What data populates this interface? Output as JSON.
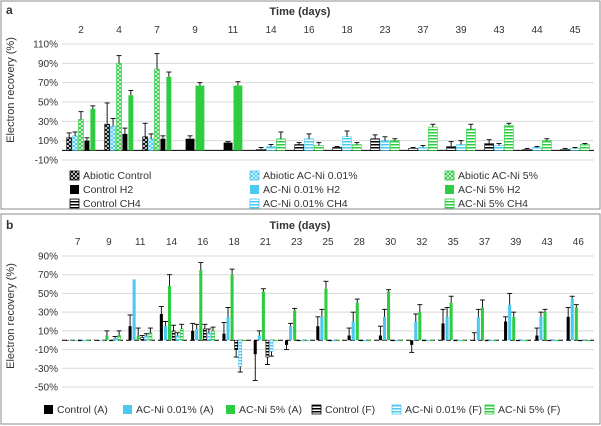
{
  "colors": {
    "black": "#000000",
    "blue": "#4cc9f0",
    "green": "#2ecc40",
    "frame": "#8c8c8c",
    "grid": "#d9d9d9"
  },
  "chart_data": [
    {
      "type": "bar",
      "panel_label": "a",
      "title": "Time (days)",
      "ylabel": "Electron recovery (%)",
      "ylim": [
        -10,
        110
      ],
      "yticks": [
        "110%",
        "90%",
        "70%",
        "50%",
        "30%",
        "10%",
        "-10%"
      ],
      "categories": [
        "2",
        "4",
        "7",
        "9",
        "11",
        "14",
        "16",
        "18",
        "23",
        "37",
        "39",
        "43",
        "44",
        "45"
      ],
      "series": [
        {
          "name": "Abiotic Control",
          "color": "#000000",
          "pattern": "cross",
          "values": [
            13,
            27,
            14,
            null,
            null,
            null,
            null,
            null,
            null,
            null,
            null,
            null,
            null,
            null
          ],
          "errors": [
            5,
            22,
            14,
            null,
            null,
            null,
            null,
            null,
            null,
            null,
            null,
            null,
            null,
            null
          ]
        },
        {
          "name": "Abiotic AC-Ni 0.01%",
          "color": "#4cc9f0",
          "pattern": "cross",
          "values": [
            15,
            25,
            12,
            null,
            null,
            null,
            null,
            null,
            null,
            null,
            null,
            null,
            null,
            null
          ],
          "errors": [
            4,
            8,
            5,
            null,
            null,
            null,
            null,
            null,
            null,
            null,
            null,
            null,
            null,
            null
          ]
        },
        {
          "name": "Abiotic AC-Ni 5%",
          "color": "#2ecc40",
          "pattern": "cross",
          "values": [
            32,
            90,
            84,
            null,
            null,
            null,
            null,
            null,
            null,
            null,
            null,
            null,
            null,
            null
          ],
          "errors": [
            8,
            8,
            16,
            null,
            null,
            null,
            null,
            null,
            null,
            null,
            null,
            null,
            null,
            null
          ]
        },
        {
          "name": "Control H2",
          "color": "#000000",
          "pattern": "solid",
          "values": [
            10,
            17,
            12,
            12,
            8,
            null,
            null,
            null,
            null,
            null,
            null,
            null,
            null,
            null
          ],
          "errors": [
            3,
            6,
            3,
            3,
            1,
            null,
            null,
            null,
            null,
            null,
            null,
            null,
            null,
            null
          ]
        },
        {
          "name": "AC-Ni 0.01% H2",
          "color": "#4cc9f0",
          "pattern": "solid",
          "values": [
            null,
            null,
            null,
            null,
            null,
            null,
            null,
            null,
            null,
            null,
            null,
            null,
            null,
            null
          ],
          "errors": [
            null,
            null,
            null,
            null,
            null,
            null,
            null,
            null,
            null,
            null,
            null,
            null,
            null,
            null
          ]
        },
        {
          "name": "AC-Ni 5% H2",
          "color": "#2ecc40",
          "pattern": "solid",
          "values": [
            43,
            57,
            76,
            67,
            67,
            null,
            null,
            null,
            null,
            null,
            null,
            null,
            null,
            null
          ],
          "errors": [
            3,
            5,
            5,
            3,
            4,
            null,
            null,
            null,
            null,
            null,
            null,
            null,
            null,
            null
          ]
        },
        {
          "name": "Control CH4",
          "color": "#000000",
          "pattern": "hstripe",
          "values": [
            null,
            null,
            null,
            null,
            null,
            1,
            6,
            3,
            12,
            2,
            4,
            7,
            1,
            1
          ],
          "errors": [
            null,
            null,
            null,
            null,
            null,
            2,
            2,
            1,
            4,
            1,
            5,
            4,
            1,
            1
          ]
        },
        {
          "name": "AC-Ni 0.01% CH4",
          "color": "#4cc9f0",
          "pattern": "hstripe",
          "values": [
            null,
            null,
            null,
            null,
            null,
            4,
            12,
            14,
            10,
            3,
            6,
            5,
            3,
            2
          ],
          "errors": [
            null,
            null,
            null,
            null,
            null,
            2,
            5,
            6,
            4,
            2,
            4,
            2,
            1,
            1
          ]
        },
        {
          "name": "AC-Ni 5% CH4",
          "color": "#2ecc40",
          "pattern": "hstripe",
          "values": [
            null,
            null,
            null,
            null,
            null,
            12,
            5,
            6,
            10,
            24,
            22,
            26,
            10,
            6
          ],
          "errors": [
            null,
            null,
            null,
            null,
            null,
            7,
            3,
            2,
            2,
            3,
            5,
            2,
            2,
            1
          ]
        }
      ],
      "legend_rows": [
        [
          "Abiotic Control",
          "Abiotic AC-Ni 0.01%",
          "Abiotic AC-Ni 5%"
        ],
        [
          "Control H2",
          "AC-Ni 0.01% H2",
          "AC-Ni 5% H2"
        ],
        [
          "Control CH4",
          "AC-Ni 0.01% CH4",
          "AC-Ni 5% CH4"
        ]
      ]
    },
    {
      "type": "bar",
      "panel_label": "b",
      "title": "Time (days)",
      "ylabel": "Electron recovery (%)",
      "ylim": [
        -50,
        90
      ],
      "yticks": [
        "90%",
        "70%",
        "50%",
        "30%",
        "10%",
        "-10%",
        "-30%",
        "-50%"
      ],
      "categories": [
        "7",
        "9",
        "11",
        "14",
        "16",
        "18",
        "21",
        "23",
        "25",
        "28",
        "30",
        "32",
        "35",
        "37",
        "39",
        "43",
        "46"
      ],
      "series": [
        {
          "name": "Control (A)",
          "color": "#000000",
          "pattern": "solid",
          "values": [
            0,
            0,
            15,
            28,
            10,
            7,
            -15,
            -5,
            15,
            5,
            5,
            -5,
            18,
            0,
            20,
            5,
            25
          ],
          "errors": [
            0,
            0,
            12,
            8,
            8,
            12,
            28,
            5,
            10,
            8,
            10,
            8,
            15,
            8,
            5,
            8,
            10
          ]
        },
        {
          "name": "AC-Ni 0.01% (A)",
          "color": "#4cc9f0",
          "pattern": "solid",
          "values": [
            0,
            0,
            65,
            15,
            12,
            25,
            5,
            15,
            25,
            20,
            25,
            20,
            25,
            25,
            38,
            25,
            45
          ],
          "errors": [
            0,
            0,
            0,
            5,
            5,
            10,
            5,
            3,
            8,
            10,
            8,
            8,
            10,
            8,
            12,
            5,
            2
          ]
        },
        {
          "name": "AC-Ni 5% (A)",
          "color": "#2ecc40",
          "pattern": "solid",
          "values": [
            0,
            5,
            5,
            58,
            75,
            70,
            52,
            32,
            55,
            40,
            52,
            30,
            40,
            35,
            25,
            30,
            35
          ],
          "errors": [
            0,
            5,
            8,
            12,
            8,
            6,
            3,
            2,
            8,
            4,
            2,
            8,
            7,
            8,
            5,
            3,
            3
          ]
        },
        {
          "name": "Control (F)",
          "color": "#000000",
          "pattern": "hstripe",
          "values": [
            0,
            0,
            3,
            10,
            12,
            -10,
            -18,
            0,
            0,
            0,
            0,
            0,
            0,
            0,
            0,
            0,
            0
          ],
          "errors": [
            0,
            0,
            2,
            6,
            5,
            8,
            8,
            0,
            0,
            0,
            0,
            0,
            0,
            0,
            0,
            0,
            0
          ]
        },
        {
          "name": "AC-Ni 0.01% (F)",
          "color": "#4cc9f0",
          "pattern": "hstripe",
          "values": [
            0,
            2,
            5,
            5,
            8,
            -28,
            -12,
            0,
            0,
            0,
            0,
            0,
            0,
            0,
            0,
            0,
            0
          ],
          "errors": [
            0,
            2,
            2,
            3,
            4,
            6,
            5,
            0,
            0,
            0,
            0,
            0,
            0,
            0,
            0,
            0,
            0
          ]
        },
        {
          "name": "AC-Ni 5% (F)",
          "color": "#2ecc40",
          "pattern": "hstripe",
          "values": [
            0,
            5,
            8,
            12,
            10,
            0,
            0,
            0,
            0,
            0,
            0,
            0,
            0,
            0,
            0,
            0,
            0
          ],
          "errors": [
            0,
            5,
            5,
            5,
            4,
            0,
            0,
            0,
            0,
            0,
            0,
            0,
            0,
            0,
            0,
            0,
            0
          ]
        }
      ],
      "legend_rows": [
        [
          "Control (A)",
          "AC-Ni 0.01% (A)",
          "AC-Ni 5% (A)",
          "Control (F)",
          "AC-Ni 0.01% (F)",
          "AC-Ni 5% (F)"
        ]
      ]
    }
  ]
}
